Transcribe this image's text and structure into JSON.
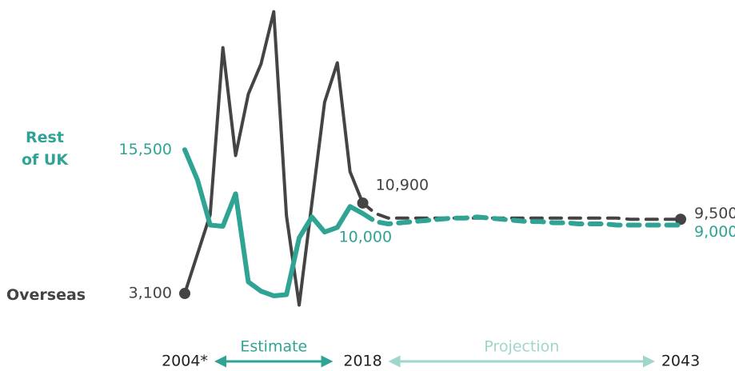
{
  "chart_data": {
    "type": "line",
    "x": [
      2004,
      2005,
      2006,
      2007,
      2008,
      2009,
      2010,
      2011,
      2012,
      2013,
      2014,
      2015,
      2016,
      2017,
      2018,
      2019,
      2020,
      2021,
      2022,
      2023,
      2024,
      2025,
      2026,
      2027,
      2028,
      2029,
      2030,
      2031,
      2032,
      2033,
      2034,
      2035,
      2036,
      2037,
      2038,
      2039,
      2040,
      2041,
      2042,
      2043
    ],
    "xlim": [
      2004,
      2043
    ],
    "xticks": [
      {
        "value": 2004,
        "label": "2004*"
      },
      2018,
      2043
    ],
    "ylim": [
      0,
      30000
    ],
    "series": [
      {
        "name": "Rest of UK",
        "color": "#2fa394",
        "values": [
          15500,
          12900,
          9000,
          8900,
          11700,
          4100,
          3300,
          2900,
          3000,
          7900,
          9700,
          8400,
          8800,
          10600,
          10000,
          9300,
          9100,
          9200,
          9300,
          9400,
          9500,
          9600,
          9600,
          9700,
          9600,
          9500,
          9400,
          9300,
          9300,
          9200,
          9200,
          9100,
          9100,
          9100,
          9000,
          9000,
          9000,
          9000,
          9000,
          9000
        ],
        "value_labels": [
          "15,500",
          null,
          null,
          null,
          null,
          null,
          null,
          null,
          null,
          null,
          null,
          null,
          null,
          null,
          "10,000",
          null,
          null,
          null,
          null,
          null,
          null,
          null,
          null,
          null,
          null,
          null,
          null,
          null,
          null,
          null,
          null,
          null,
          null,
          null,
          null,
          null,
          null,
          null,
          null,
          "9,000"
        ]
      },
      {
        "name": "Overseas",
        "color": "#444444",
        "values": [
          3100,
          6500,
          9900,
          24300,
          15000,
          20300,
          22900,
          27400,
          9800,
          2100,
          10900,
          19600,
          23000,
          13600,
          10900,
          10000,
          9600,
          9600,
          9600,
          9600,
          9600,
          9600,
          9600,
          9600,
          9600,
          9600,
          9600,
          9600,
          9600,
          9600,
          9600,
          9600,
          9600,
          9600,
          9600,
          9500,
          9500,
          9500,
          9500,
          9500
        ],
        "value_labels": [
          "3,100",
          null,
          null,
          null,
          null,
          null,
          null,
          null,
          null,
          null,
          null,
          null,
          null,
          null,
          "10,900",
          null,
          null,
          null,
          null,
          null,
          null,
          null,
          null,
          null,
          null,
          null,
          null,
          null,
          null,
          null,
          null,
          null,
          null,
          null,
          null,
          null,
          null,
          null,
          null,
          "9,500"
        ]
      }
    ],
    "annotations": [
      {
        "text": "Estimate",
        "color": "#2fa394"
      },
      {
        "text": "Projection",
        "color": "#9fd6cc"
      }
    ]
  }
}
